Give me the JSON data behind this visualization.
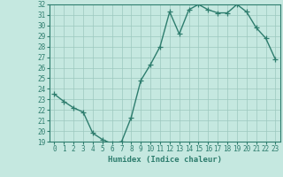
{
  "x": [
    0,
    1,
    2,
    3,
    4,
    5,
    6,
    7,
    8,
    9,
    10,
    11,
    12,
    13,
    14,
    15,
    16,
    17,
    18,
    19,
    20,
    21,
    22,
    23
  ],
  "y": [
    23.5,
    22.8,
    22.2,
    21.8,
    19.8,
    19.2,
    18.8,
    19.0,
    21.3,
    24.8,
    26.3,
    28.0,
    31.3,
    29.2,
    31.5,
    32.0,
    31.5,
    31.2,
    31.2,
    32.0,
    31.3,
    29.8,
    28.8,
    26.8
  ],
  "line_color": "#2e7d6e",
  "marker": "+",
  "bg_color": "#c5e8e0",
  "grid_color": "#9cc8be",
  "xlabel": "Humidex (Indice chaleur)",
  "ylim": [
    19,
    32
  ],
  "xlim": [
    -0.5,
    23.5
  ],
  "yticks": [
    19,
    20,
    21,
    22,
    23,
    24,
    25,
    26,
    27,
    28,
    29,
    30,
    31,
    32
  ],
  "xticks": [
    0,
    1,
    2,
    3,
    4,
    5,
    6,
    7,
    8,
    9,
    10,
    11,
    12,
    13,
    14,
    15,
    16,
    17,
    18,
    19,
    20,
    21,
    22,
    23
  ],
  "tick_color": "#2e7d6e",
  "label_color": "#2e7d6e",
  "spine_color": "#2e7d6e",
  "linewidth": 1.0,
  "markersize": 4,
  "font_size_ticks": 5.5,
  "font_size_label": 6.5
}
